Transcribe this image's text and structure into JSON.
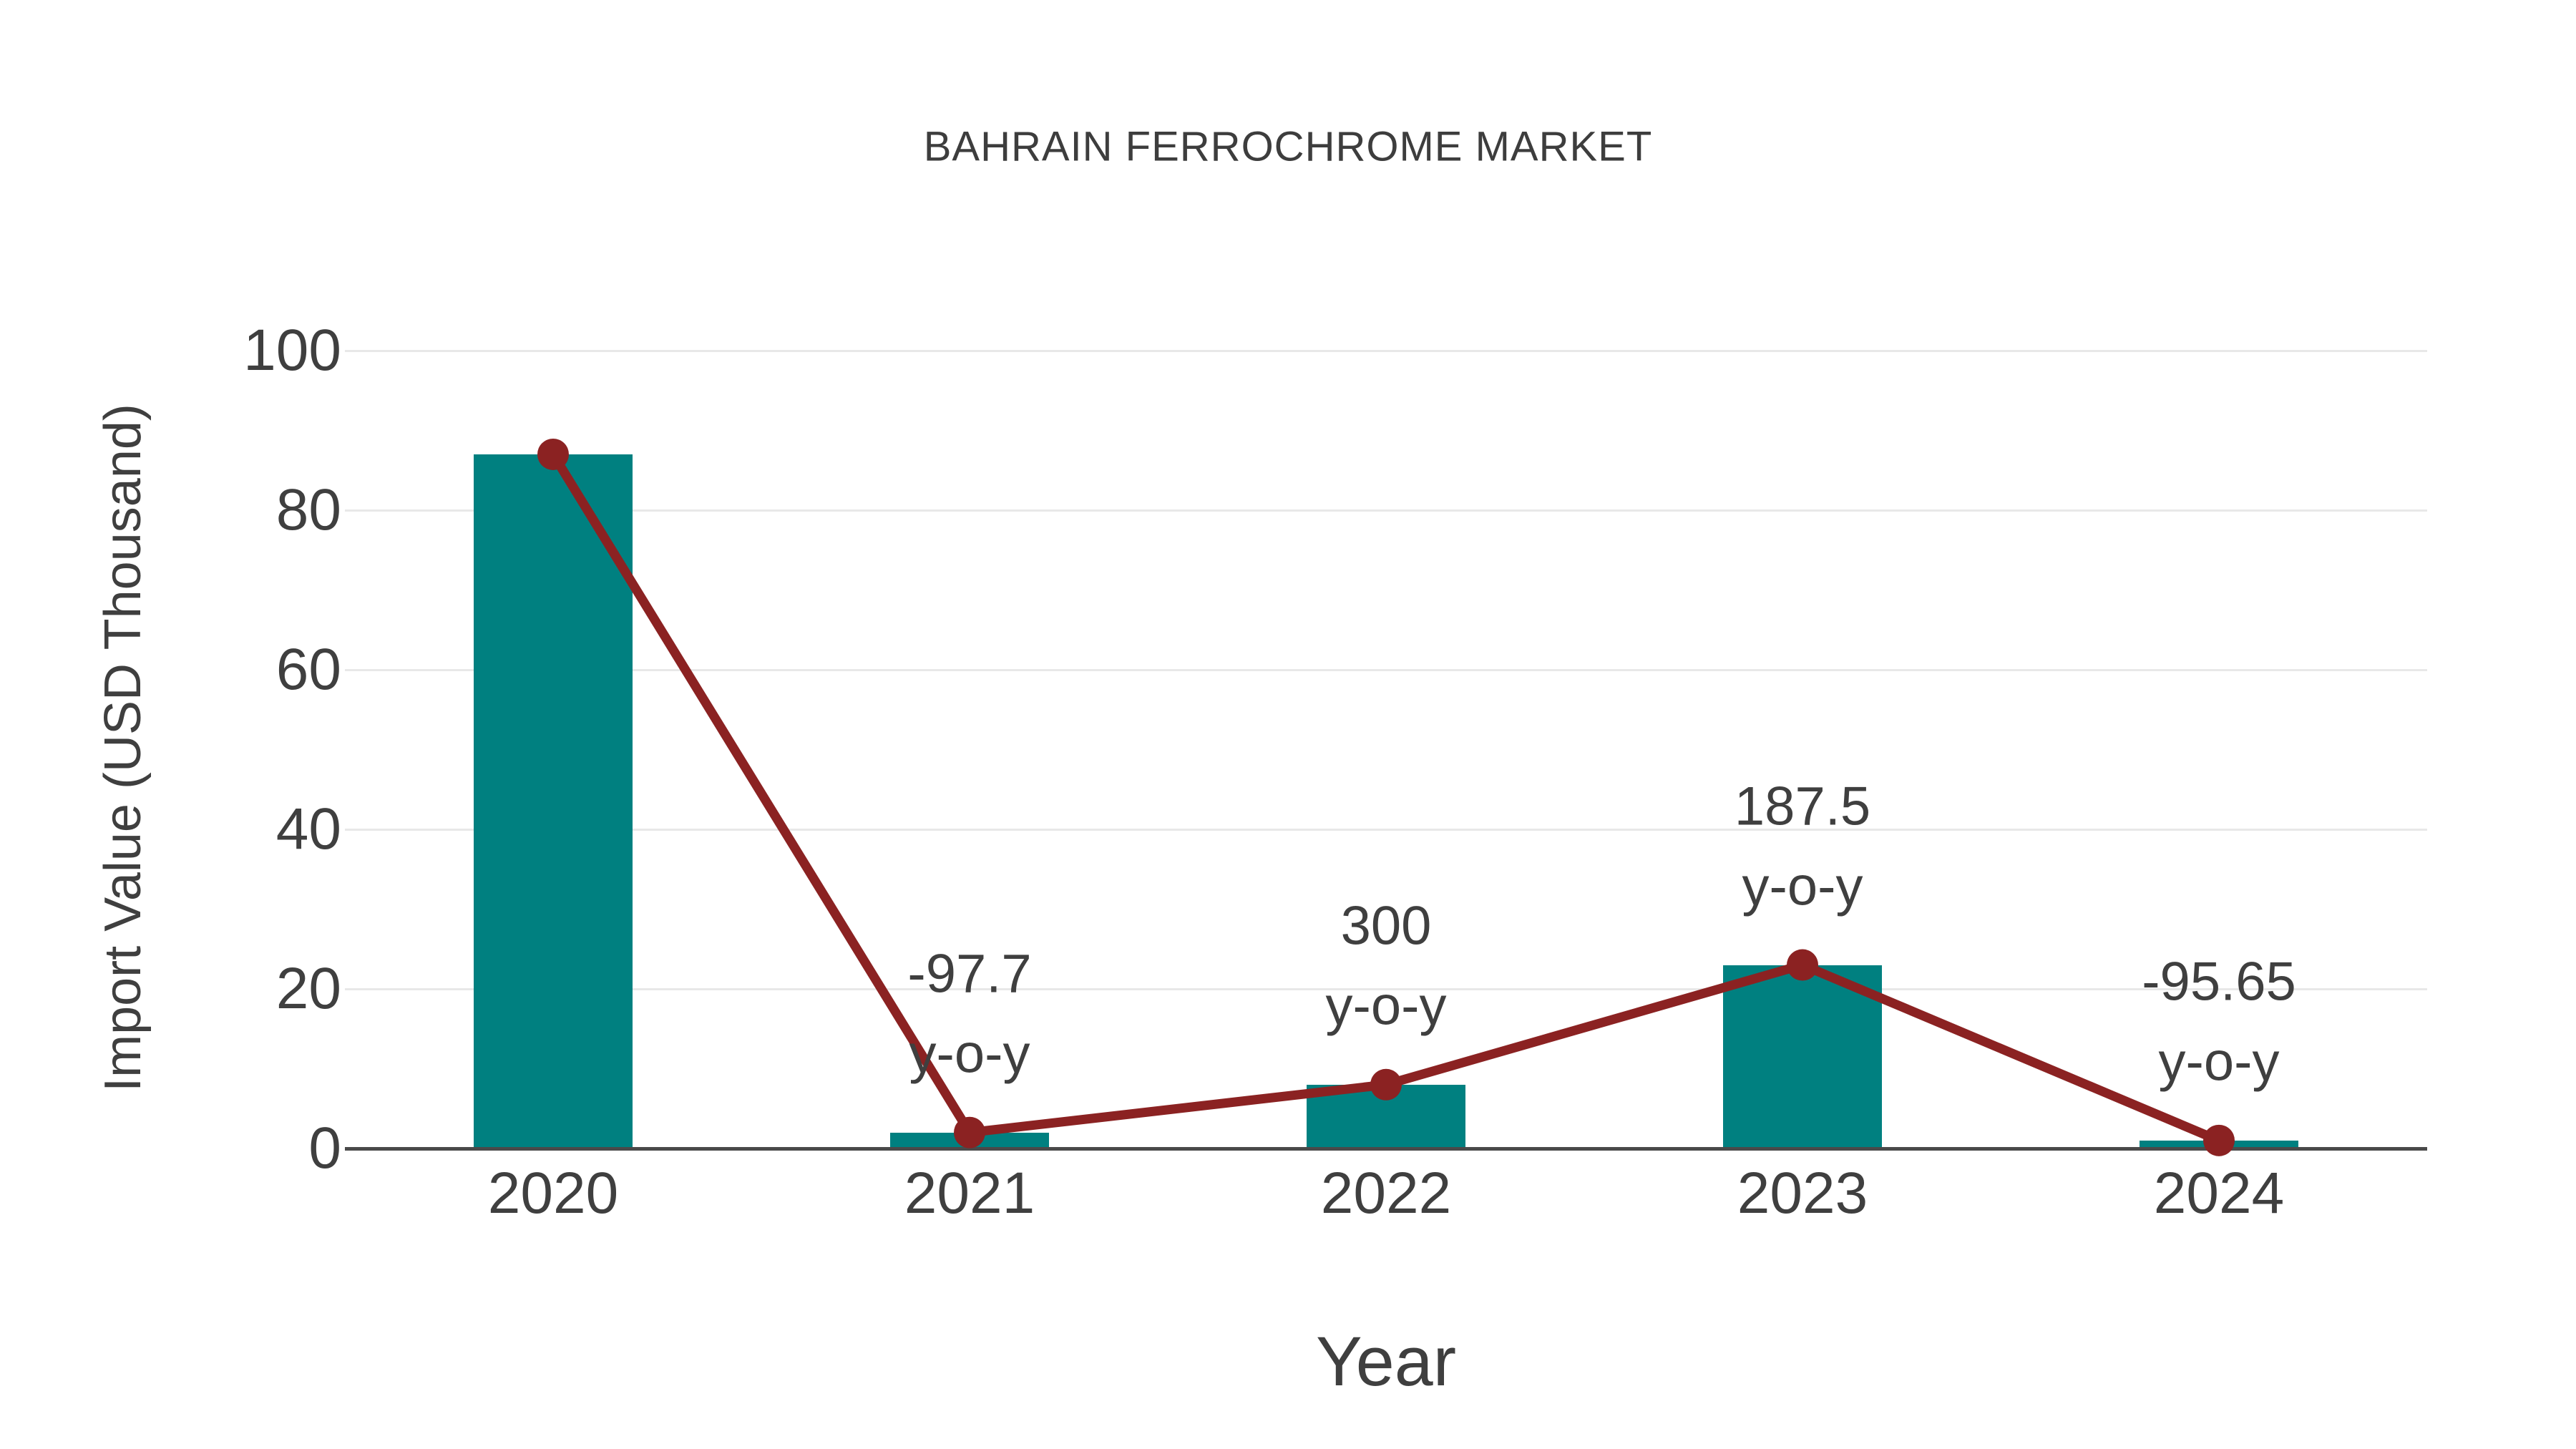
{
  "chart_data": {
    "type": "bar",
    "title": "BAHRAIN FERROCHROME MARKET",
    "xlabel": "Year",
    "ylabel": "Import Value (USD Thousand)",
    "categories": [
      "2020",
      "2021",
      "2022",
      "2023",
      "2024"
    ],
    "series": [
      {
        "name": "Import Value bars",
        "type": "bar",
        "values": [
          87,
          2,
          8,
          23,
          1
        ]
      },
      {
        "name": "Import Value trend line",
        "type": "line",
        "values": [
          87,
          2,
          8,
          23,
          1
        ]
      }
    ],
    "ylim": [
      0,
      100
    ],
    "yticks": [
      0,
      20,
      40,
      60,
      80,
      100
    ],
    "grid": true,
    "legend": "none",
    "annotations": [
      {
        "category": "2021",
        "line1": "-97.7",
        "line2": "y-o-y"
      },
      {
        "category": "2022",
        "line1": "300",
        "line2": "y-o-y"
      },
      {
        "category": "2023",
        "line1": "187.5",
        "line2": "y-o-y"
      },
      {
        "category": "2024",
        "line1": "-95.65",
        "line2": "y-o-y"
      }
    ],
    "colors": {
      "bar": "#008080",
      "line": "#8B2222",
      "marker": "#8B2222",
      "grid": "#e8e8e8",
      "axis": "#4a4a4a",
      "text": "#3f3f3f"
    }
  }
}
